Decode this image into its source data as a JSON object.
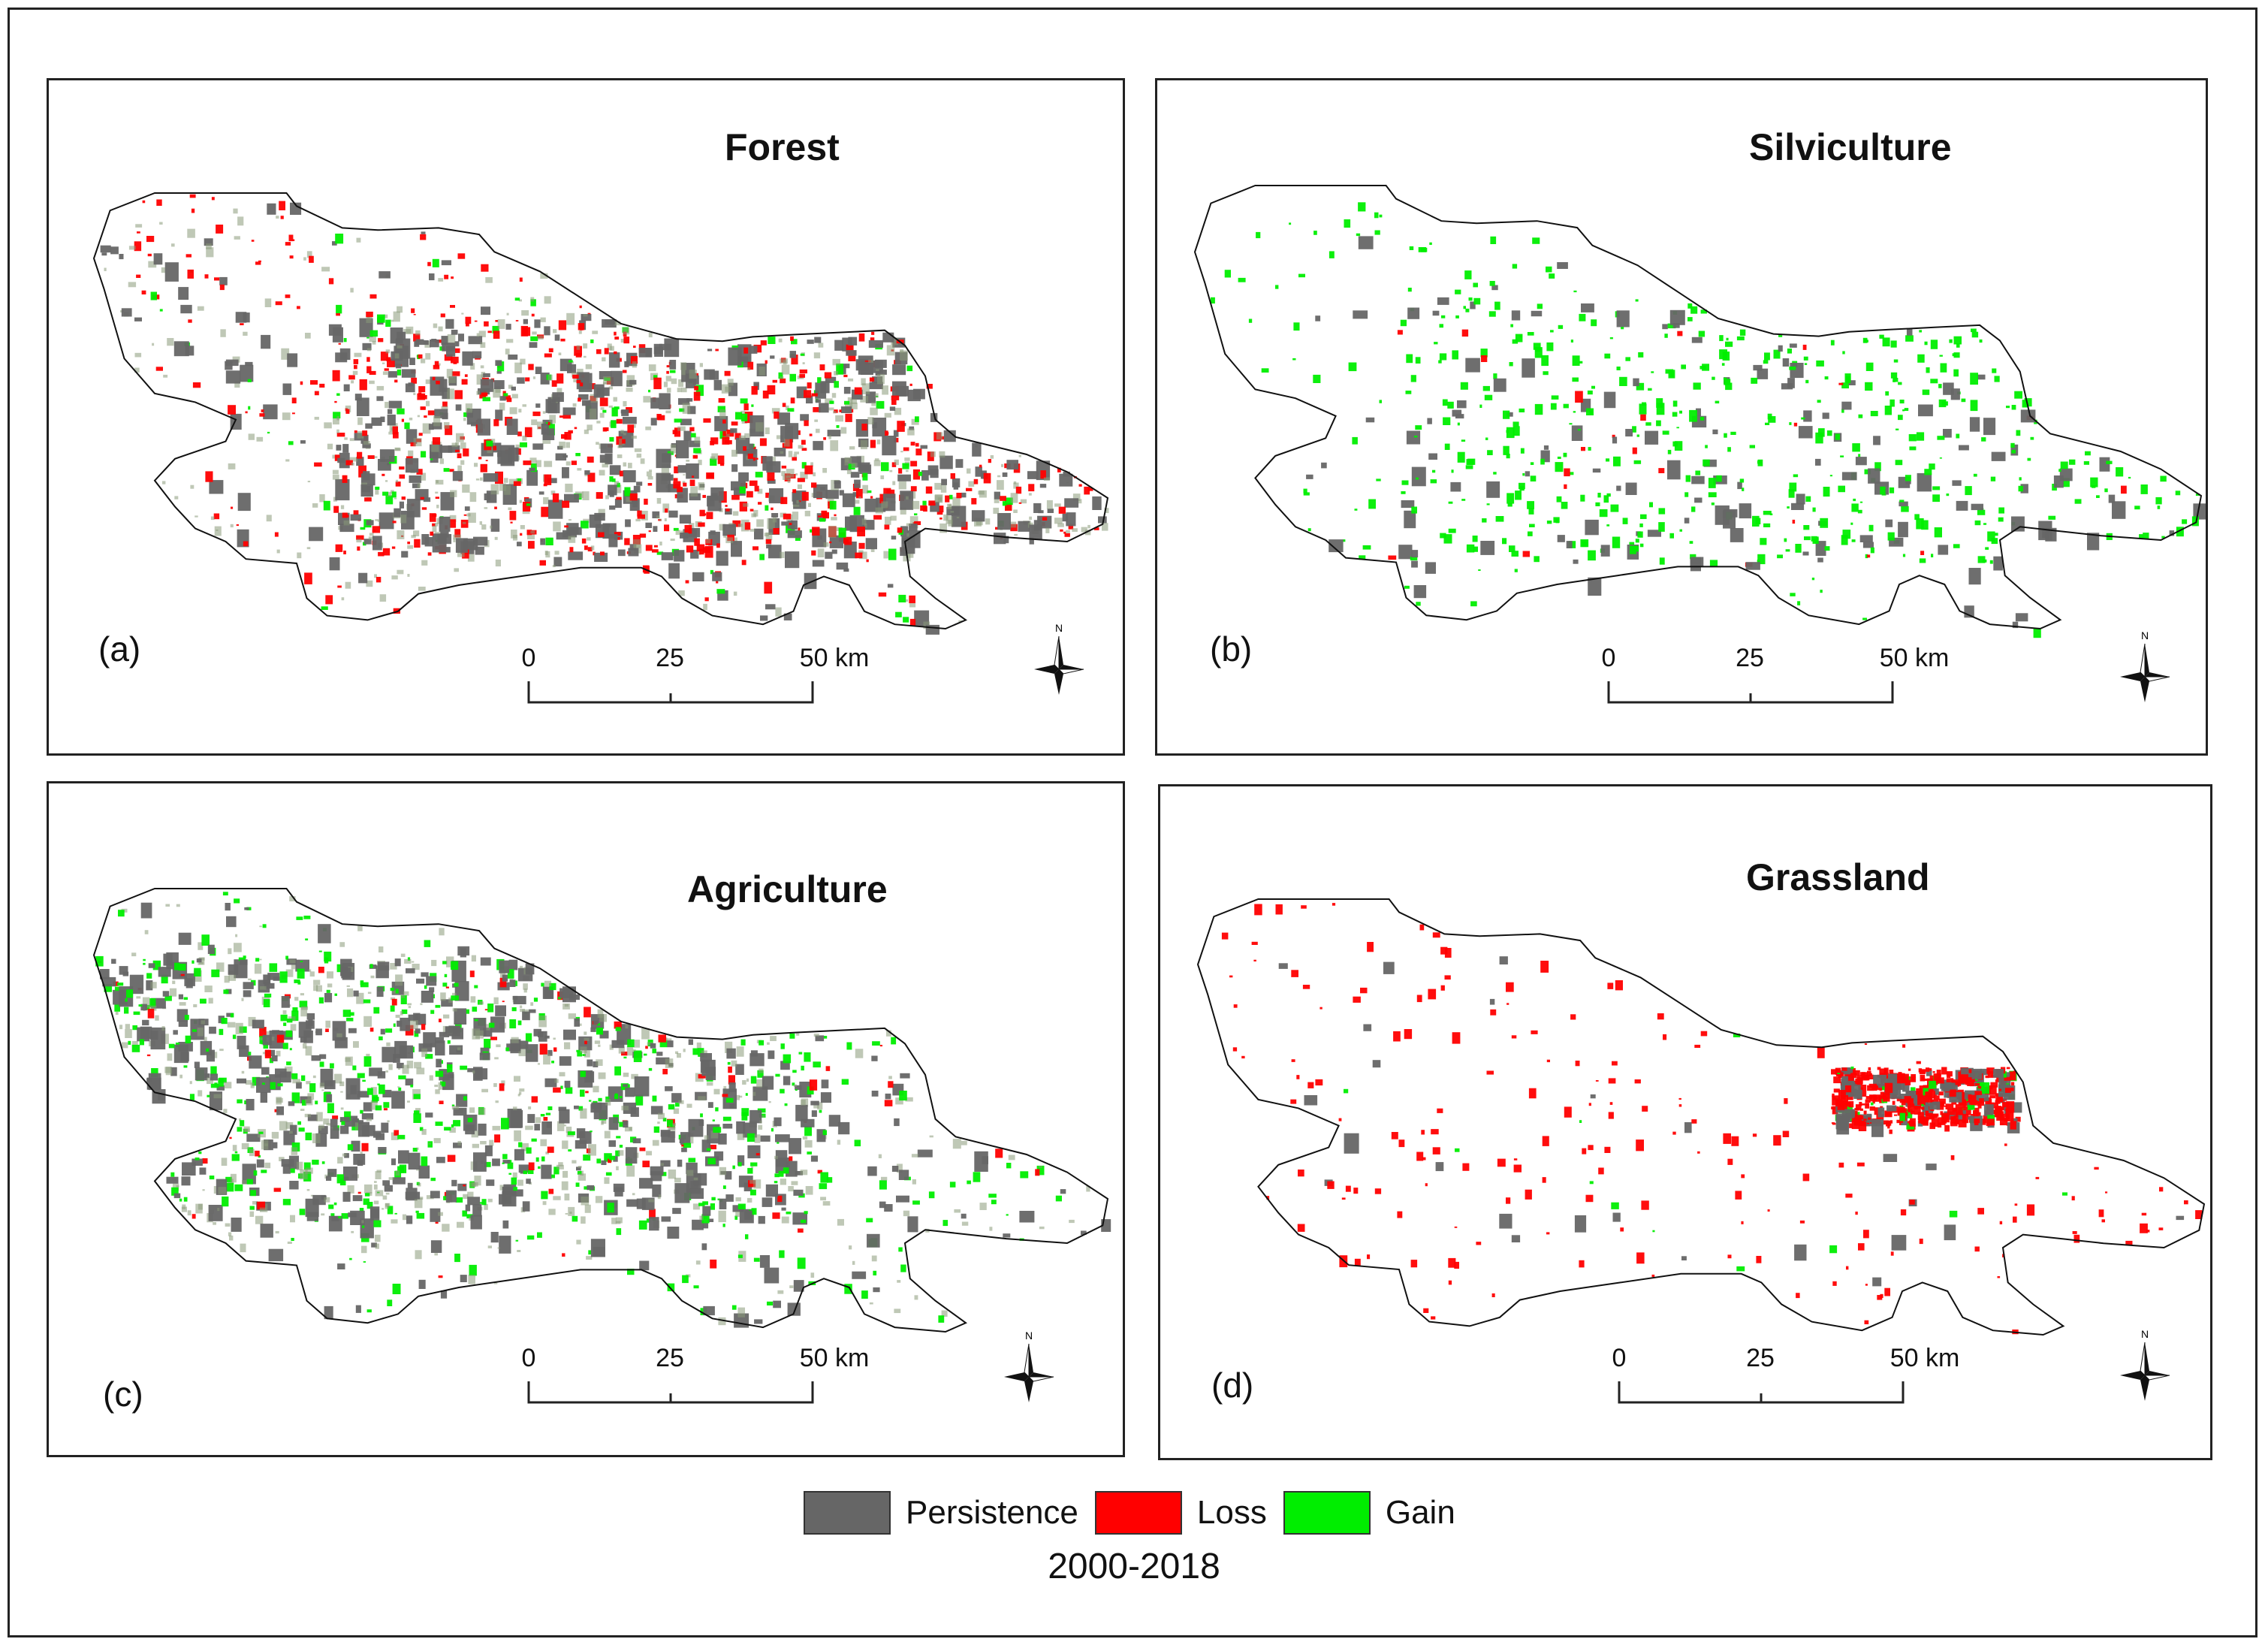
{
  "panels": [
    {
      "id": "a",
      "title": "Forest",
      "label": "(a)",
      "mix": {
        "persistence": 0.26,
        "loss": 0.32,
        "gain": 0.08,
        "lines": 0.34
      }
    },
    {
      "id": "b",
      "title": "Silviculture",
      "label": "(b)",
      "mix": {
        "persistence": 0.08,
        "loss": 0.01,
        "gain": 0.28,
        "lines": 0.0
      }
    },
    {
      "id": "c",
      "title": "Agriculture",
      "label": "(c)",
      "mix": {
        "persistence": 0.3,
        "loss": 0.06,
        "gain": 0.32,
        "lines": 0.32
      }
    },
    {
      "id": "d",
      "title": "Grassland",
      "label": "(d)",
      "mix": {
        "persistence": 0.05,
        "loss": 0.28,
        "gain": 0.02,
        "lines": 0.0
      }
    }
  ],
  "scale_bar": {
    "ticks": [
      "0",
      "25",
      "50 km"
    ]
  },
  "north_label": "N",
  "legend": [
    {
      "label": "Persistence",
      "color": "#666666"
    },
    {
      "label": "Loss",
      "color": "#ff0000"
    },
    {
      "label": "Gain",
      "color": "#00ee00"
    }
  ],
  "period": "2000-2018"
}
